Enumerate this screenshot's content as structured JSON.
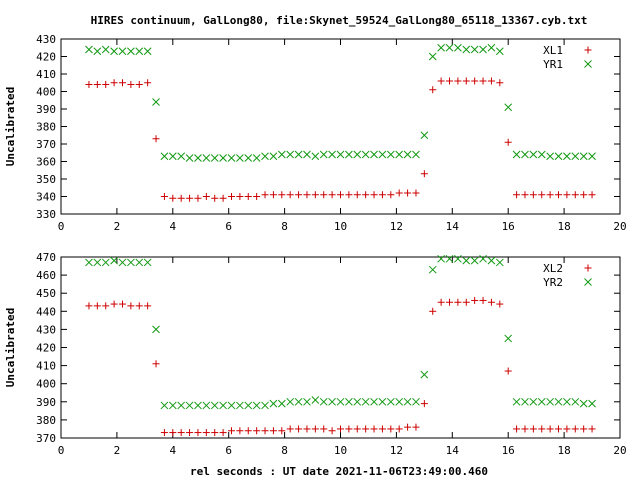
{
  "title": "HIRES continuum, GalLong80, file:Skynet_59524_GalLong80_65118_13367.cyb.txt",
  "xlabel": "rel seconds : UT date 2021-11-06T23:49:00.460",
  "colors": {
    "red": "#cc0000",
    "green": "#119911"
  },
  "chart_data": [
    {
      "type": "scatter",
      "ylabel": "Uncalibrated",
      "xlim": [
        0,
        20
      ],
      "ylim": [
        330,
        430
      ],
      "xticks": [
        "0",
        "2",
        "4",
        "6",
        "8",
        "10",
        "12",
        "14",
        "16",
        "18",
        "20"
      ],
      "yticks": [
        "330",
        "340",
        "350",
        "360",
        "370",
        "380",
        "390",
        "400",
        "410",
        "420",
        "430"
      ],
      "grid": false,
      "legend_position": "top-right",
      "series": [
        {
          "name": "XL1",
          "marker": "+",
          "color": "#cc0000",
          "x": [
            1.0,
            1.3,
            1.6,
            1.9,
            2.2,
            2.5,
            2.8,
            3.1,
            3.4,
            3.7,
            4.0,
            4.3,
            4.6,
            4.9,
            5.2,
            5.5,
            5.8,
            6.1,
            6.4,
            6.7,
            7.0,
            7.3,
            7.6,
            7.9,
            8.2,
            8.5,
            8.8,
            9.1,
            9.4,
            9.7,
            10.0,
            10.3,
            10.6,
            10.9,
            11.2,
            11.5,
            11.8,
            12.1,
            12.4,
            12.7,
            13.0,
            13.3,
            13.6,
            13.9,
            14.2,
            14.5,
            14.8,
            15.1,
            15.4,
            15.7,
            16.0,
            16.3,
            16.6,
            16.9,
            17.2,
            17.5,
            17.8,
            18.1,
            18.4,
            18.7,
            19.0
          ],
          "y": [
            404,
            404,
            404,
            405,
            405,
            404,
            404,
            405,
            373,
            340,
            339,
            339,
            339,
            339,
            340,
            339,
            339,
            340,
            340,
            340,
            340,
            341,
            341,
            341,
            341,
            341,
            341,
            341,
            341,
            341,
            341,
            341,
            341,
            341,
            341,
            341,
            341,
            342,
            342,
            342,
            353,
            401,
            406,
            406,
            406,
            406,
            406,
            406,
            406,
            405,
            371,
            341,
            341,
            341,
            341,
            341,
            341,
            341,
            341,
            341,
            341
          ]
        },
        {
          "name": "YR1",
          "marker": "x",
          "color": "#119911",
          "x": [
            1.0,
            1.3,
            1.6,
            1.9,
            2.2,
            2.5,
            2.8,
            3.1,
            3.4,
            3.7,
            4.0,
            4.3,
            4.6,
            4.9,
            5.2,
            5.5,
            5.8,
            6.1,
            6.4,
            6.7,
            7.0,
            7.3,
            7.6,
            7.9,
            8.2,
            8.5,
            8.8,
            9.1,
            9.4,
            9.7,
            10.0,
            10.3,
            10.6,
            10.9,
            11.2,
            11.5,
            11.8,
            12.1,
            12.4,
            12.7,
            13.0,
            13.3,
            13.6,
            13.9,
            14.2,
            14.5,
            14.8,
            15.1,
            15.4,
            15.7,
            16.0,
            16.3,
            16.6,
            16.9,
            17.2,
            17.5,
            17.8,
            18.1,
            18.4,
            18.7,
            19.0
          ],
          "y": [
            424,
            423,
            424,
            423,
            423,
            423,
            423,
            423,
            394,
            363,
            363,
            363,
            362,
            362,
            362,
            362,
            362,
            362,
            362,
            362,
            362,
            363,
            363,
            364,
            364,
            364,
            364,
            363,
            364,
            364,
            364,
            364,
            364,
            364,
            364,
            364,
            364,
            364,
            364,
            364,
            375,
            420,
            425,
            425,
            425,
            424,
            424,
            424,
            425,
            423,
            391,
            364,
            364,
            364,
            364,
            363,
            363,
            363,
            363,
            363,
            363
          ]
        }
      ]
    },
    {
      "type": "scatter",
      "ylabel": "Uncalibrated",
      "xlim": [
        0,
        20
      ],
      "ylim": [
        370,
        470
      ],
      "xticks": [
        "0",
        "2",
        "4",
        "6",
        "8",
        "10",
        "12",
        "14",
        "16",
        "18",
        "20"
      ],
      "yticks": [
        "370",
        "380",
        "390",
        "400",
        "410",
        "420",
        "430",
        "440",
        "450",
        "460",
        "470"
      ],
      "grid": false,
      "legend_position": "top-right",
      "series": [
        {
          "name": "XL2",
          "marker": "+",
          "color": "#cc0000",
          "x": [
            1.0,
            1.3,
            1.6,
            1.9,
            2.2,
            2.5,
            2.8,
            3.1,
            3.4,
            3.7,
            4.0,
            4.3,
            4.6,
            4.9,
            5.2,
            5.5,
            5.8,
            6.1,
            6.4,
            6.7,
            7.0,
            7.3,
            7.6,
            7.9,
            8.2,
            8.5,
            8.8,
            9.1,
            9.4,
            9.7,
            10.0,
            10.3,
            10.6,
            10.9,
            11.2,
            11.5,
            11.8,
            12.1,
            12.4,
            12.7,
            13.0,
            13.3,
            13.6,
            13.9,
            14.2,
            14.5,
            14.8,
            15.1,
            15.4,
            15.7,
            16.0,
            16.3,
            16.6,
            16.9,
            17.2,
            17.5,
            17.8,
            18.1,
            18.4,
            18.7,
            19.0
          ],
          "y": [
            443,
            443,
            443,
            444,
            444,
            443,
            443,
            443,
            411,
            373,
            373,
            373,
            373,
            373,
            373,
            373,
            373,
            374,
            374,
            374,
            374,
            374,
            374,
            374,
            375,
            375,
            375,
            375,
            375,
            374,
            375,
            375,
            375,
            375,
            375,
            375,
            375,
            375,
            376,
            376,
            389,
            440,
            445,
            445,
            445,
            445,
            446,
            446,
            445,
            444,
            407,
            375,
            375,
            375,
            375,
            375,
            375,
            375,
            375,
            375,
            375
          ]
        },
        {
          "name": "YR2",
          "marker": "x",
          "color": "#119911",
          "x": [
            1.0,
            1.3,
            1.6,
            1.9,
            2.2,
            2.5,
            2.8,
            3.1,
            3.4,
            3.7,
            4.0,
            4.3,
            4.6,
            4.9,
            5.2,
            5.5,
            5.8,
            6.1,
            6.4,
            6.7,
            7.0,
            7.3,
            7.6,
            7.9,
            8.2,
            8.5,
            8.8,
            9.1,
            9.4,
            9.7,
            10.0,
            10.3,
            10.6,
            10.9,
            11.2,
            11.5,
            11.8,
            12.1,
            12.4,
            12.7,
            13.0,
            13.3,
            13.6,
            13.9,
            14.2,
            14.5,
            14.8,
            15.1,
            15.4,
            15.7,
            16.0,
            16.3,
            16.6,
            16.9,
            17.2,
            17.5,
            17.8,
            18.1,
            18.4,
            18.7,
            19.0
          ],
          "y": [
            467,
            467,
            467,
            468,
            467,
            467,
            467,
            467,
            430,
            388,
            388,
            388,
            388,
            388,
            388,
            388,
            388,
            388,
            388,
            388,
            388,
            388,
            389,
            389,
            390,
            390,
            390,
            391,
            390,
            390,
            390,
            390,
            390,
            390,
            390,
            390,
            390,
            390,
            390,
            390,
            405,
            463,
            469,
            469,
            469,
            468,
            468,
            469,
            468,
            467,
            425,
            390,
            390,
            390,
            390,
            390,
            390,
            390,
            390,
            389,
            389
          ]
        }
      ]
    }
  ]
}
